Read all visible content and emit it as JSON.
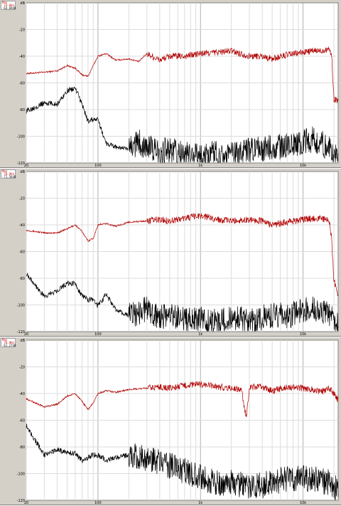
{
  "chart_data": [
    {
      "type": "line",
      "readout": {
        "label": "Max",
        "freq": "24.6Hz",
        "level": "-64.69dB"
      },
      "y_tick_labels": [
        "dB",
        "-20",
        "-40",
        "-60",
        "-80",
        "-100",
        "-120"
      ],
      "ylim": [
        -120,
        0
      ],
      "x_tick_labels": [
        "20",
        "100",
        "1k",
        "10k"
      ],
      "xlim": [
        20,
        22000
      ],
      "x_scale": "log",
      "grid": true,
      "series": [
        {
          "color": "#b00000",
          "x": [
            20,
            30,
            40,
            50,
            60,
            70,
            80,
            90,
            100,
            120,
            150,
            200,
            250,
            300,
            400,
            500,
            700,
            1000,
            1500,
            2000,
            3000,
            4000,
            5000,
            7000,
            10000,
            13000,
            15000,
            18000,
            19000,
            20000,
            22000
          ],
          "y": [
            -53,
            -52,
            -51,
            -47,
            -49,
            -54,
            -55,
            -47,
            -40,
            -38,
            -43,
            -42,
            -44,
            -38,
            -43,
            -40,
            -40,
            -38,
            -37,
            -36,
            -40,
            -40,
            -42,
            -39,
            -37,
            -36,
            -36,
            -34,
            -40,
            -72,
            -73
          ]
        },
        {
          "color": "#000000",
          "x": [
            20,
            30,
            40,
            50,
            60,
            70,
            80,
            90,
            100,
            120,
            150,
            200,
            250,
            300,
            400,
            500,
            700,
            1000,
            1500,
            2000,
            3000,
            4000,
            5000,
            7000,
            10000,
            13000,
            15000,
            18000,
            20000,
            22000
          ],
          "y": [
            -81,
            -75,
            -76,
            -66,
            -64,
            -76,
            -89,
            -87,
            -88,
            -105,
            -108,
            -110,
            -104,
            -108,
            -112,
            -110,
            -114,
            -115,
            -112,
            -114,
            -111,
            -110,
            -108,
            -107,
            -104,
            -102,
            -105,
            -110,
            -113,
            -117
          ]
        }
      ]
    },
    {
      "type": "line",
      "readout": {
        "label": "Max",
        "freq": "70.9Hz",
        "level": "-71.56dB"
      },
      "y_tick_labels": [
        "dB",
        "-20",
        "-40",
        "-60",
        "-80",
        "-100",
        "-120"
      ],
      "ylim": [
        -120,
        0
      ],
      "x_tick_labels": [
        "20",
        "100",
        "1k",
        "10k"
      ],
      "xlim": [
        20,
        22000
      ],
      "x_scale": "log",
      "grid": true,
      "series": [
        {
          "color": "#b00000",
          "x": [
            20,
            30,
            40,
            50,
            60,
            70,
            80,
            90,
            100,
            120,
            150,
            200,
            300,
            400,
            500,
            700,
            1000,
            1500,
            2000,
            3000,
            4000,
            5000,
            7000,
            10000,
            13000,
            15000,
            18000,
            19000,
            20000,
            22000
          ],
          "y": [
            -44,
            -46,
            -46,
            -43,
            -40,
            -45,
            -52,
            -50,
            -40,
            -39,
            -41,
            -38,
            -37,
            -36,
            -37,
            -35,
            -33,
            -36,
            -37,
            -36,
            -37,
            -40,
            -38,
            -36,
            -35,
            -35,
            -37,
            -50,
            -82,
            -92
          ]
        },
        {
          "color": "#000000",
          "x": [
            20,
            30,
            40,
            50,
            60,
            70,
            80,
            90,
            100,
            120,
            150,
            200,
            300,
            400,
            500,
            700,
            1000,
            1500,
            2000,
            3000,
            4000,
            5000,
            7000,
            10000,
            13000,
            15000,
            18000,
            20000,
            22000
          ],
          "y": [
            -76,
            -94,
            -89,
            -84,
            -84,
            -93,
            -96,
            -96,
            -101,
            -92,
            -104,
            -108,
            -103,
            -110,
            -107,
            -112,
            -111,
            -113,
            -110,
            -112,
            -110,
            -108,
            -108,
            -104,
            -102,
            -104,
            -107,
            -112,
            -116
          ]
        }
      ]
    },
    {
      "type": "line",
      "readout": {
        "label": "Max",
        "freq": "70.9Hz",
        "level": "-61.27dB"
      },
      "y_tick_labels": [
        "dB",
        "-20",
        "-40",
        "-60",
        "-80",
        "-100",
        "-120"
      ],
      "ylim": [
        -120,
        0
      ],
      "x_tick_labels": [
        "20",
        "100",
        "1k",
        "10k"
      ],
      "xlim": [
        20,
        22000
      ],
      "x_scale": "log",
      "grid": true,
      "series": [
        {
          "color": "#b00000",
          "x": [
            20,
            30,
            40,
            50,
            60,
            70,
            80,
            90,
            100,
            120,
            150,
            200,
            300,
            400,
            500,
            700,
            1000,
            1500,
            2000,
            2500,
            2800,
            3000,
            3500,
            4000,
            5000,
            7000,
            10000,
            13000,
            15000,
            18000,
            20000,
            22000
          ],
          "y": [
            -44,
            -50,
            -48,
            -42,
            -40,
            -46,
            -52,
            -47,
            -40,
            -38,
            -39,
            -37,
            -36,
            -35,
            -36,
            -34,
            -33,
            -35,
            -36,
            -37,
            -59,
            -36,
            -35,
            -35,
            -38,
            -35,
            -36,
            -37,
            -39,
            -36,
            -40,
            -45
          ]
        },
        {
          "color": "#000000",
          "x": [
            20,
            30,
            40,
            50,
            60,
            70,
            80,
            90,
            100,
            120,
            150,
            200,
            300,
            400,
            500,
            700,
            1000,
            1500,
            2000,
            3000,
            4000,
            5000,
            7000,
            10000,
            13000,
            15000,
            18000,
            20000,
            22000
          ],
          "y": [
            -64,
            -86,
            -82,
            -84,
            -85,
            -90,
            -88,
            -86,
            -86,
            -90,
            -88,
            -86,
            -89,
            -92,
            -94,
            -98,
            -103,
            -108,
            -107,
            -110,
            -109,
            -106,
            -104,
            -103,
            -104,
            -105,
            -107,
            -110,
            -113
          ]
        }
      ]
    }
  ]
}
